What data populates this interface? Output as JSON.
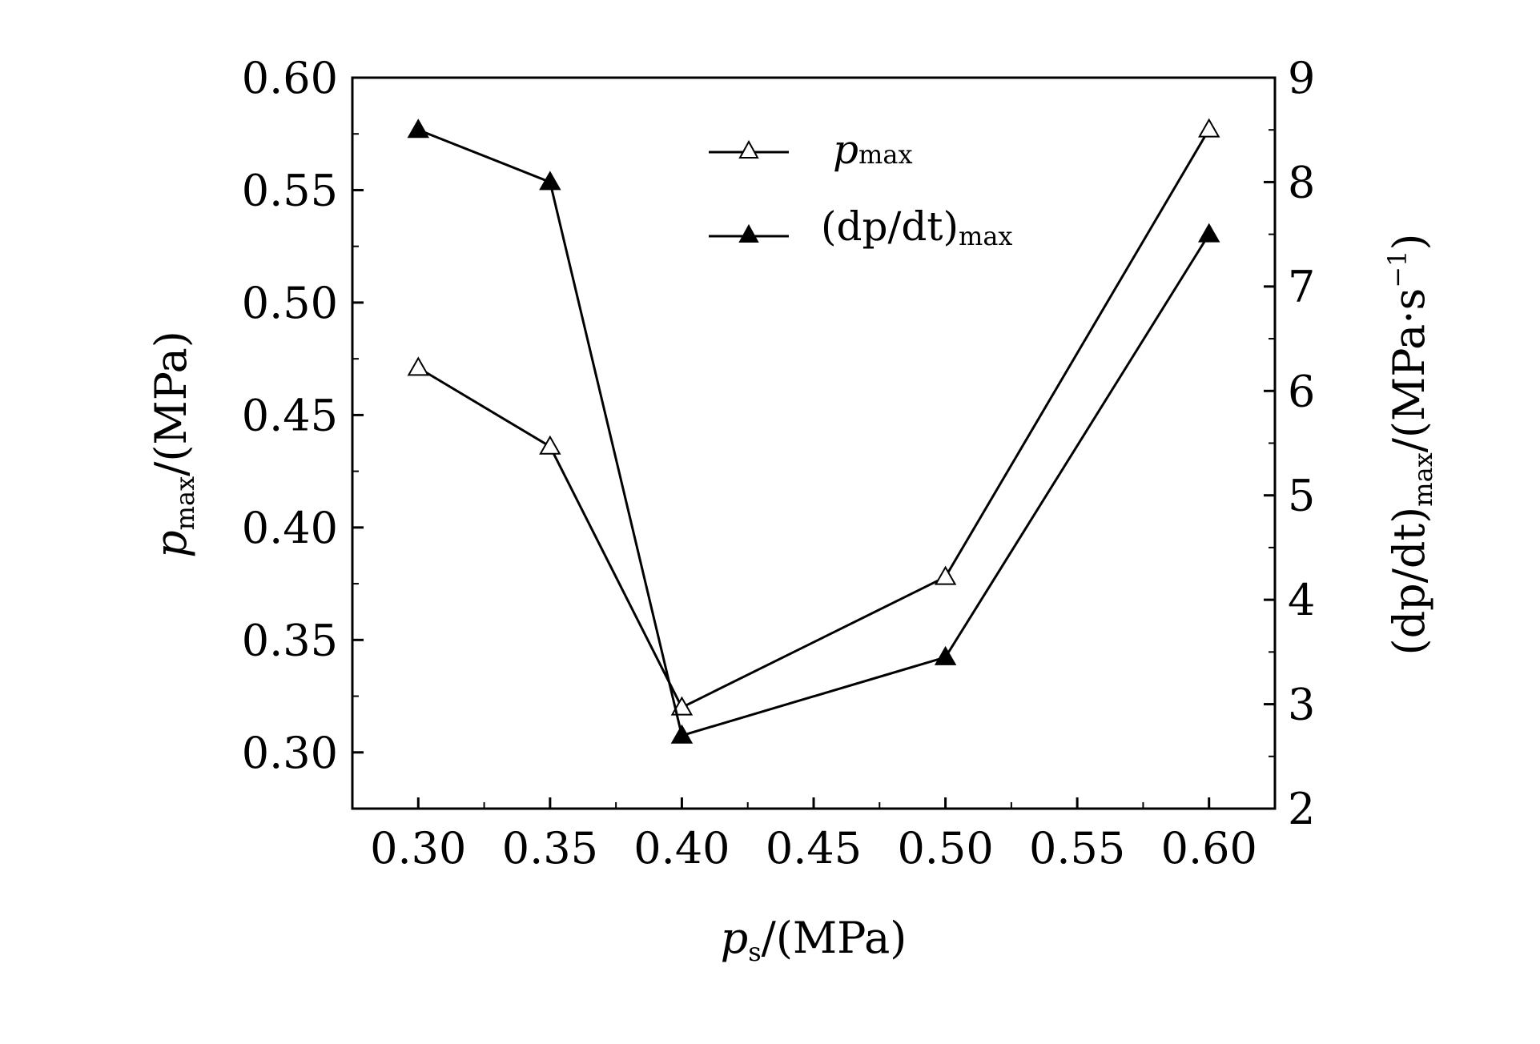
{
  "chart_data": {
    "type": "line",
    "x": [
      0.3,
      0.35,
      0.4,
      0.5,
      0.6
    ],
    "x_ticks": [
      "0.30",
      "0.35",
      "0.40",
      "0.45",
      "0.50",
      "0.55",
      "0.60"
    ],
    "xlim": [
      0.275,
      0.625
    ],
    "xlabel": {
      "main": "p",
      "sub": "s",
      "rest": "/(MPa)"
    },
    "y_left": {
      "label": {
        "main": "p",
        "sub": "max",
        "rest": "/(MPa)"
      },
      "ylim": [
        0.275,
        0.6
      ],
      "ticks": [
        "0.30",
        "0.35",
        "0.40",
        "0.45",
        "0.50",
        "0.55",
        "0.60"
      ]
    },
    "y_right": {
      "label": {
        "pre": "(dp/dt)",
        "sub": "max",
        "rest": "/(MPa·s",
        "sup": "−1",
        "close": ")"
      },
      "ylim": [
        2,
        9
      ],
      "ticks": [
        "2",
        "3",
        "4",
        "5",
        "6",
        "7",
        "8",
        "9"
      ]
    },
    "series": [
      {
        "name": "p",
        "name_sub": "max",
        "axis": "left",
        "marker": "open-triangle",
        "values": [
          0.471,
          0.436,
          0.32,
          0.378,
          0.577
        ]
      },
      {
        "name": "(dp/dt)",
        "name_sub": "max",
        "axis": "right",
        "marker": "filled-triangle",
        "values": [
          8.5,
          8.0,
          2.7,
          3.45,
          7.5
        ]
      }
    ],
    "legend_position": "top-center",
    "grid": false
  }
}
